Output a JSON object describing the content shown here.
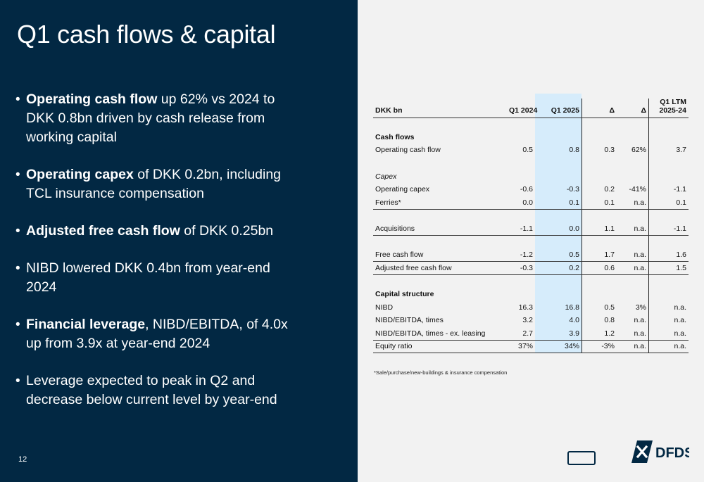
{
  "slide": {
    "title": "Q1 cash flows & capital",
    "page_number": "12"
  },
  "bullets": [
    {
      "bold": "Operating cash flow",
      "text": " up 62% vs 2024 to DKK 0.8bn driven by cash release from working capital"
    },
    {
      "bold": "Operating capex",
      "text": " of DKK 0.2bn, including TCL insurance compensation"
    },
    {
      "bold": "Adjusted free cash flow",
      "text": " of DKK 0.25bn"
    },
    {
      "bold": "",
      "text": "NIBD  lowered DKK 0.4bn from year-end 2024"
    },
    {
      "bold": "Financial leverage",
      "text": ", NIBD/EBITDA, of 4.0x up from 3.9x at year-end 2024"
    },
    {
      "bold": "",
      "text": "Leverage expected to peak in Q2 and decrease below current level by year-end"
    }
  ],
  "table": {
    "headers": {
      "label": "DKK bn",
      "q1_2024": "Q1 2024",
      "q1_2025": "Q1 2025",
      "delta_abs": "Δ",
      "delta_pct": "Δ",
      "ltm_line1": "Q1 LTM",
      "ltm_line2": "2025-24"
    },
    "sections": {
      "cash_flows": "Cash flows",
      "capex": "Capex",
      "capital_structure": "Capital structure"
    },
    "rows": {
      "operating_cash_flow": [
        "Operating cash flow",
        "0.5",
        "0.8",
        "0.3",
        "62%",
        "3.7"
      ],
      "operating_capex": [
        "Operating capex",
        "-0.6",
        "-0.3",
        "0.2",
        "-41%",
        "-1.1"
      ],
      "ferries": [
        "Ferries*",
        "0.0",
        "0.1",
        "0.1",
        "n.a.",
        "0.1"
      ],
      "acquisitions": [
        "Acquisitions",
        "-1.1",
        "0.0",
        "1.1",
        "n.a.",
        "-1.1"
      ],
      "free_cash_flow": [
        "Free cash flow",
        "-1.2",
        "0.5",
        "1.7",
        "n.a.",
        "1.6"
      ],
      "adjusted_free_cash_flow": [
        "Adjusted free cash flow",
        "-0.3",
        "0.2",
        "0.6",
        "n.a.",
        "1.5"
      ],
      "nibd": [
        "NIBD",
        "16.3",
        "16.8",
        "0.5",
        "3%",
        "n.a."
      ],
      "nibd_ebitda": [
        "NIBD/EBITDA, times",
        "3.2",
        "4.0",
        "0.8",
        "n.a.",
        "n.a."
      ],
      "nibd_ebitda_ex_leasing": [
        "NIBD/EBITDA, times - ex. leasing",
        "2.7",
        "3.9",
        "1.2",
        "n.a.",
        "n.a."
      ],
      "equity_ratio": [
        "Equity ratio",
        "37%",
        "34%",
        "-3%",
        "n.a.",
        "n.a."
      ]
    },
    "footnote": "*Sale/purchase/new-buildings & insurance compensation"
  },
  "logo": {
    "text": "DFDS",
    "icon": "dfds-cross-logo-icon",
    "color": "#022843"
  },
  "colors": {
    "navy": "#022843",
    "highlight": "#d6ecfb",
    "background": "#f2f2f2"
  }
}
